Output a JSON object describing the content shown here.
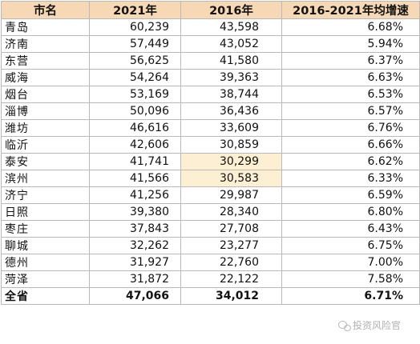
{
  "table": {
    "headers": [
      "市名",
      "2021年",
      "2016年",
      "2016-2021年均增速"
    ],
    "rows": [
      {
        "city": "青岛",
        "v2021": "60,239",
        "v2016": "43,598",
        "growth": "6.68%",
        "hl": false
      },
      {
        "city": "济南",
        "v2021": "57,449",
        "v2016": "43,052",
        "growth": "5.94%",
        "hl": false
      },
      {
        "city": "东营",
        "v2021": "56,625",
        "v2016": "41,580",
        "growth": "6.37%",
        "hl": false
      },
      {
        "city": "威海",
        "v2021": "54,264",
        "v2016": "39,363",
        "growth": "6.63%",
        "hl": false
      },
      {
        "city": "烟台",
        "v2021": "53,169",
        "v2016": "38,744",
        "growth": "6.53%",
        "hl": false
      },
      {
        "city": "淄博",
        "v2021": "50,096",
        "v2016": "36,436",
        "growth": "6.57%",
        "hl": false
      },
      {
        "city": "潍坊",
        "v2021": "46,616",
        "v2016": "33,609",
        "growth": "6.76%",
        "hl": false
      },
      {
        "city": "临沂",
        "v2021": "42,606",
        "v2016": "30,859",
        "growth": "6.66%",
        "hl": false
      },
      {
        "city": "泰安",
        "v2021": "41,741",
        "v2016": "30,299",
        "growth": "6.62%",
        "hl": true
      },
      {
        "city": "滨州",
        "v2021": "41,566",
        "v2016": "30,583",
        "growth": "6.33%",
        "hl": true
      },
      {
        "city": "济宁",
        "v2021": "41,256",
        "v2016": "29,987",
        "growth": "6.59%",
        "hl": false
      },
      {
        "city": "日照",
        "v2021": "39,380",
        "v2016": "28,340",
        "growth": "6.80%",
        "hl": false
      },
      {
        "city": "枣庄",
        "v2021": "37,843",
        "v2016": "27,708",
        "growth": "6.43%",
        "hl": false
      },
      {
        "city": "聊城",
        "v2021": "32,262",
        "v2016": "23,277",
        "growth": "6.75%",
        "hl": false
      },
      {
        "city": "德州",
        "v2021": "31,927",
        "v2016": "22,760",
        "growth": "7.00%",
        "hl": false
      },
      {
        "city": "菏泽",
        "v2021": "31,872",
        "v2016": "22,122",
        "growth": "7.58%",
        "hl": false
      }
    ],
    "total": {
      "city": "全省",
      "v2021": "47,066",
      "v2016": "34,012",
      "growth": "6.71%"
    }
  },
  "watermark": {
    "text": "投资风险官",
    "icon": "wechat-icon"
  },
  "colors": {
    "header_bg": "#f6d8b5",
    "highlight_bg": "#fdf0d2",
    "border": "#b9b9b9"
  }
}
